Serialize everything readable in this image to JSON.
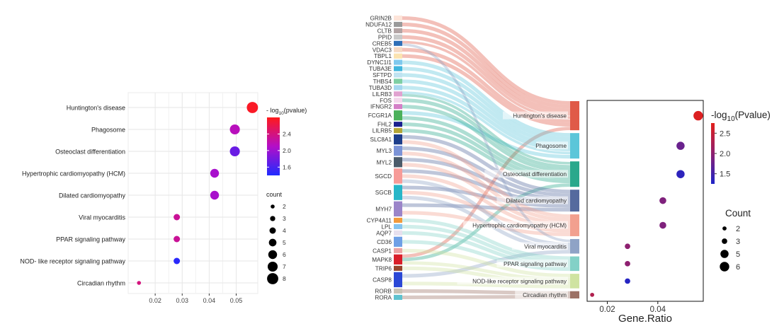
{
  "colors": {
    "left_grad_high": "#ff1a1a",
    "left_grad_mid": "#b30ec8",
    "left_grad_low": "#1f2bff",
    "right_grad_high": "#e2201b",
    "right_grad_mid": "#8e2070",
    "right_grad_low": "#1e24c8"
  },
  "chart_data": [
    {
      "type": "scatter",
      "subtype": "dotplot",
      "title": "",
      "xlabel": "",
      "ylabel": "",
      "xlim": [
        0.01,
        0.058
      ],
      "xticks": [
        0.02,
        0.03,
        0.04,
        0.05
      ],
      "xtick_labels": [
        "0.02",
        "0.03",
        "0.04",
        "0.05"
      ],
      "grid": true,
      "categories": [
        "Huntington's disease",
        "Phagosome",
        "Osteoclast differentiation",
        "Hypertrophic cardiomyopathy (HCM)",
        "Dilated cardiomyopathy",
        "Viral myocarditis",
        "PPAR signaling pathway",
        "NOD- like receptor signaling pathway",
        "Circadian rhythm"
      ],
      "x": [
        0.056,
        0.0495,
        0.0495,
        0.042,
        0.042,
        0.028,
        0.028,
        0.028,
        0.014
      ],
      "count": [
        8,
        7,
        7,
        6,
        6,
        4,
        4,
        4,
        2
      ],
      "neg_log10_pvalue": [
        2.75,
        2.15,
        1.75,
        2.05,
        2.05,
        2.3,
        2.3,
        1.45,
        2.4
      ],
      "color_legend": {
        "title_prefix": "- log",
        "title_sub": "10",
        "title_suffix": "(pvalue)",
        "range": [
          1.4,
          2.8
        ],
        "ticks": [
          1.6,
          2.0,
          2.4
        ],
        "tick_labels": [
          "1.6",
          "2.0",
          "2.4"
        ]
      },
      "size_legend": {
        "title": "count",
        "values": [
          2,
          3,
          4,
          5,
          6,
          7,
          8
        ],
        "labels": [
          "2",
          "3",
          "4",
          "5",
          "6",
          "7",
          "8"
        ]
      }
    },
    {
      "type": "sankey",
      "title": "",
      "genes": [
        "GRIN2B",
        "NDUFA12",
        "CLTB",
        "PPID",
        "CREB5",
        "VDAC3",
        "TBPL1",
        "DYNC1I1",
        "TUBA3E",
        "SFTPD",
        "THBS4",
        "TUBA3D",
        "LILRB3",
        "FOS",
        "IFNGR2",
        "FCGR1A",
        "FHL2",
        "LILRB5",
        "SLC8A1",
        "MYL3",
        "MYL2",
        "SGCD",
        "SGCB",
        "MYH7",
        "CYP4A11",
        "LPL",
        "AQP7",
        "CD36",
        "CASP1",
        "MAPK8",
        "TRIP6",
        "CASP8",
        "RORB",
        "RORA"
      ],
      "gene_weights": [
        1,
        1,
        1,
        1,
        1,
        1,
        1,
        1,
        1,
        1,
        1,
        1,
        1,
        1,
        1,
        2,
        1,
        1,
        2,
        2,
        2,
        3,
        3,
        3,
        1,
        1,
        1,
        2,
        1,
        2,
        1,
        3,
        1,
        1
      ],
      "gene_colors": [
        "#fde4d9",
        "#9a9a9a",
        "#b3a4a4",
        "#c9c9c9",
        "#2f6fb7",
        "#f5d9c4",
        "#fbe3b0",
        "#7fc9ee",
        "#41b6dd",
        "#bfe3f1",
        "#7ecfa3",
        "#a4d7ef",
        "#e1a2d0",
        "#f3d7ec",
        "#d47fc7",
        "#4cb15b",
        "#1a1f8f",
        "#b5a637",
        "#1d3e8b",
        "#7b93d7",
        "#4b5b6a",
        "#f79b98",
        "#27b6c8",
        "#9b85c9",
        "#f39a3b",
        "#86c4ef",
        "#e7e0ee",
        "#6ea0e6",
        "#eba3a3",
        "#d91f2a",
        "#96462e",
        "#2b48d6",
        "#c8c2b4",
        "#5ec2cf"
      ],
      "pathways": [
        "Huntington's disease",
        "Phagosome",
        "Osteoclast differentiation",
        "Dilated cardiomyopathy",
        "Hypertrophic cardiomyopathy (HCM)",
        "Viral myocarditis",
        "PPAR signaling pathway",
        "NOD-like receptor signaling pathway",
        "Circadian rhythm"
      ],
      "pathway_weights": [
        8,
        7,
        7,
        6,
        6,
        4,
        4,
        4,
        2
      ],
      "pathway_colors": [
        "#e05a48",
        "#5bc6d9",
        "#2aa88c",
        "#556a9e",
        "#f2a08f",
        "#8fa3c6",
        "#83d1c7",
        "#cfe3a1",
        "#9c7165"
      ],
      "links": [
        [
          0,
          0
        ],
        [
          1,
          0
        ],
        [
          2,
          0
        ],
        [
          3,
          0
        ],
        [
          4,
          0
        ],
        [
          5,
          0
        ],
        [
          6,
          0
        ],
        [
          29,
          0
        ],
        [
          7,
          1
        ],
        [
          8,
          1
        ],
        [
          9,
          1
        ],
        [
          10,
          1
        ],
        [
          11,
          1
        ],
        [
          12,
          1
        ],
        [
          15,
          1
        ],
        [
          13,
          2
        ],
        [
          14,
          2
        ],
        [
          15,
          2
        ],
        [
          29,
          2
        ],
        [
          16,
          2
        ],
        [
          17,
          2
        ],
        [
          12,
          2
        ],
        [
          18,
          3
        ],
        [
          19,
          3
        ],
        [
          20,
          3
        ],
        [
          21,
          3
        ],
        [
          22,
          3
        ],
        [
          23,
          3
        ],
        [
          18,
          4
        ],
        [
          19,
          4
        ],
        [
          20,
          4
        ],
        [
          21,
          4
        ],
        [
          22,
          4
        ],
        [
          23,
          4
        ],
        [
          21,
          5
        ],
        [
          22,
          5
        ],
        [
          31,
          5
        ],
        [
          4,
          5
        ],
        [
          24,
          6
        ],
        [
          25,
          6
        ],
        [
          26,
          6
        ],
        [
          27,
          6
        ],
        [
          28,
          7
        ],
        [
          29,
          7
        ],
        [
          30,
          7
        ],
        [
          31,
          7
        ],
        [
          32,
          8
        ],
        [
          33,
          8
        ]
      ]
    },
    {
      "type": "scatter",
      "subtype": "dotplot",
      "title": "",
      "xlabel": "Gene.Ratio",
      "ylabel": "",
      "xlim": [
        0.012,
        0.058
      ],
      "xticks": [
        0.02,
        0.04
      ],
      "xtick_labels": [
        "0.02",
        "0.04"
      ],
      "grid": false,
      "x": [
        0.056,
        0.049,
        0.049,
        0.042,
        0.042,
        0.028,
        0.028,
        0.028,
        0.014
      ],
      "count": [
        6,
        5,
        5,
        4,
        4,
        3,
        3,
        3,
        2
      ],
      "neg_log10_pvalue": [
        2.7,
        1.75,
        1.35,
        1.9,
        1.9,
        2.0,
        2.0,
        1.3,
        2.3
      ],
      "color_legend": {
        "title_prefix": "-log",
        "title_sub": "10",
        "title_suffix": "(Pvalue)",
        "range": [
          1.25,
          2.75
        ],
        "ticks": [
          1.5,
          2.0,
          2.5
        ],
        "tick_labels": [
          "1.5",
          "2.0",
          "2.5"
        ]
      },
      "size_legend": {
        "title": "Count",
        "values": [
          2,
          3,
          5,
          6
        ],
        "labels": [
          "2",
          "3",
          "5",
          "6"
        ]
      }
    }
  ]
}
